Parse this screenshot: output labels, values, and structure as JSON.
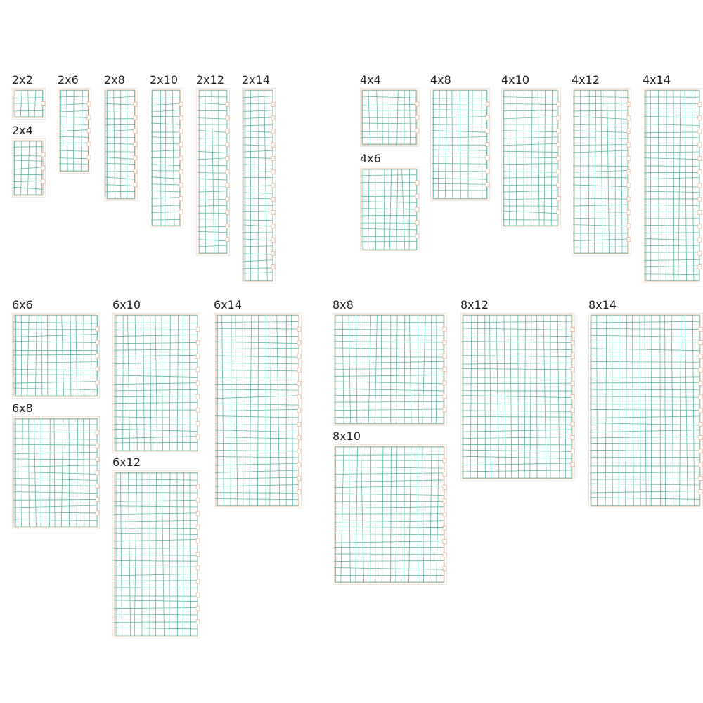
{
  "colors": {
    "grid_line": "#5fb9a8",
    "border": "#e0a77e",
    "outer": "#d8d3c8",
    "label": "#222222"
  },
  "panels": [
    {
      "label": "2x2",
      "cols": 2,
      "rows": 2
    },
    {
      "label": "2x4",
      "cols": 2,
      "rows": 4
    },
    {
      "label": "2x6",
      "cols": 2,
      "rows": 6
    },
    {
      "label": "2x8",
      "cols": 2,
      "rows": 8
    },
    {
      "label": "2x10",
      "cols": 2,
      "rows": 10
    },
    {
      "label": "2x12",
      "cols": 2,
      "rows": 12
    },
    {
      "label": "2x14",
      "cols": 2,
      "rows": 14
    },
    {
      "label": "4x4",
      "cols": 4,
      "rows": 4
    },
    {
      "label": "4x6",
      "cols": 4,
      "rows": 6
    },
    {
      "label": "4x8",
      "cols": 4,
      "rows": 8
    },
    {
      "label": "4x10",
      "cols": 4,
      "rows": 10
    },
    {
      "label": "4x12",
      "cols": 4,
      "rows": 12
    },
    {
      "label": "4x14",
      "cols": 4,
      "rows": 14
    },
    {
      "label": "6x6",
      "cols": 6,
      "rows": 6
    },
    {
      "label": "6x8",
      "cols": 6,
      "rows": 8
    },
    {
      "label": "6x10",
      "cols": 6,
      "rows": 10
    },
    {
      "label": "6x12",
      "cols": 6,
      "rows": 12
    },
    {
      "label": "6x14",
      "cols": 6,
      "rows": 14
    },
    {
      "label": "8x8",
      "cols": 8,
      "rows": 8
    },
    {
      "label": "8x10",
      "cols": 8,
      "rows": 10
    },
    {
      "label": "8x12",
      "cols": 8,
      "rows": 12
    },
    {
      "label": "8x14",
      "cols": 8,
      "rows": 14
    }
  ]
}
